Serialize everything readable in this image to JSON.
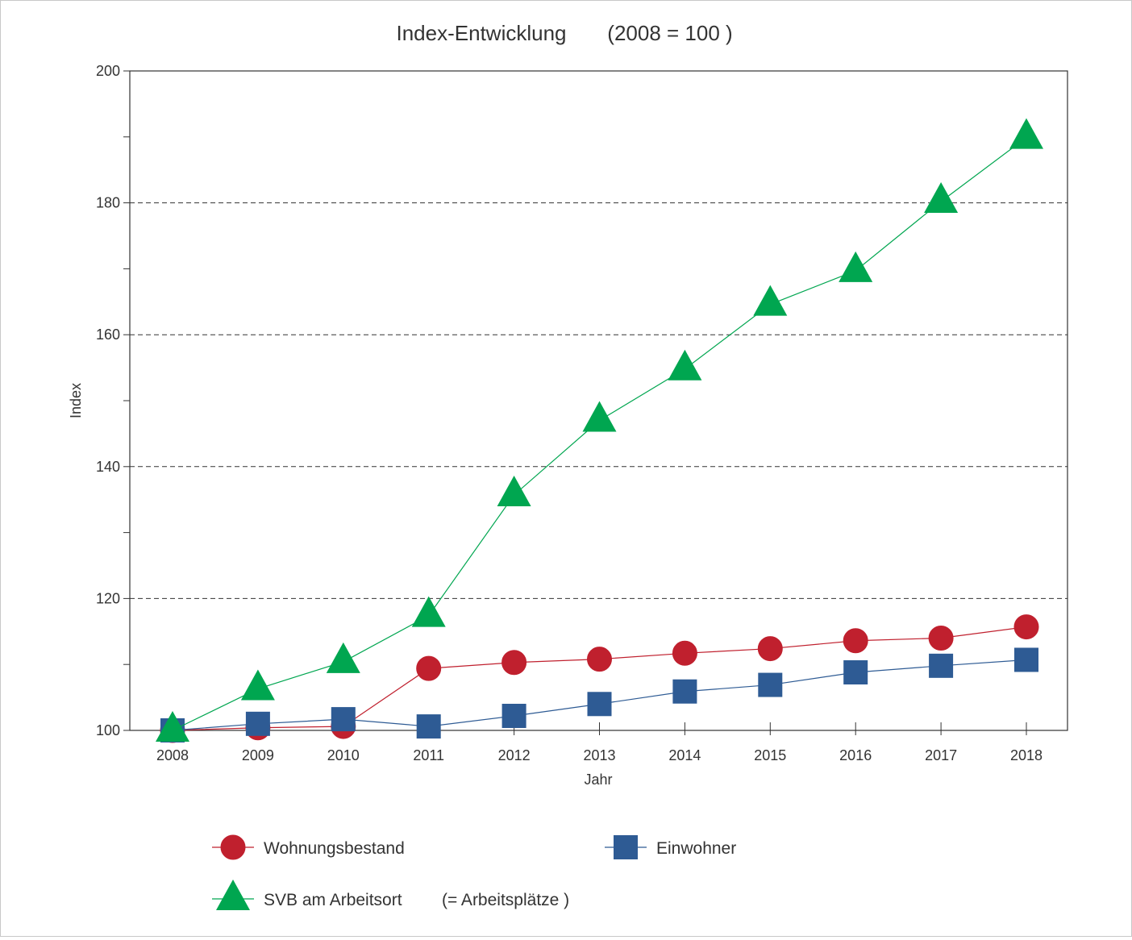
{
  "chart_data": {
    "type": "line",
    "title": "Index-Entwicklung",
    "title_suffix": "(2008 = 100 )",
    "xlabel": "Jahr",
    "ylabel": "Index",
    "x": [
      2008,
      2009,
      2010,
      2011,
      2012,
      2013,
      2014,
      2015,
      2016,
      2017,
      2018
    ],
    "ylim": [
      100,
      200
    ],
    "yticks": [
      100,
      120,
      140,
      160,
      180,
      200
    ],
    "grid": "horizontal dashed",
    "legend_position": "bottom",
    "series": [
      {
        "name": "Wohnungsbestand",
        "color": "#c0202e",
        "marker": "circle",
        "values": [
          100,
          100.4,
          100.6,
          109.4,
          110.3,
          110.8,
          111.7,
          112.4,
          113.6,
          114.0,
          115.7
        ]
      },
      {
        "name": "Einwohner",
        "color": "#2e5b94",
        "marker": "square",
        "values": [
          100,
          101.0,
          101.7,
          100.6,
          102.2,
          104.0,
          105.9,
          106.9,
          108.8,
          109.8,
          110.7
        ]
      },
      {
        "name": "SVB am Arbeitsort",
        "name_suffix": "(= Arbeitsplätze )",
        "color": "#00a650",
        "marker": "triangle",
        "values": [
          100,
          106.3,
          110.4,
          117.4,
          135.7,
          147.0,
          154.8,
          164.6,
          169.7,
          180.2,
          189.9
        ]
      }
    ]
  }
}
